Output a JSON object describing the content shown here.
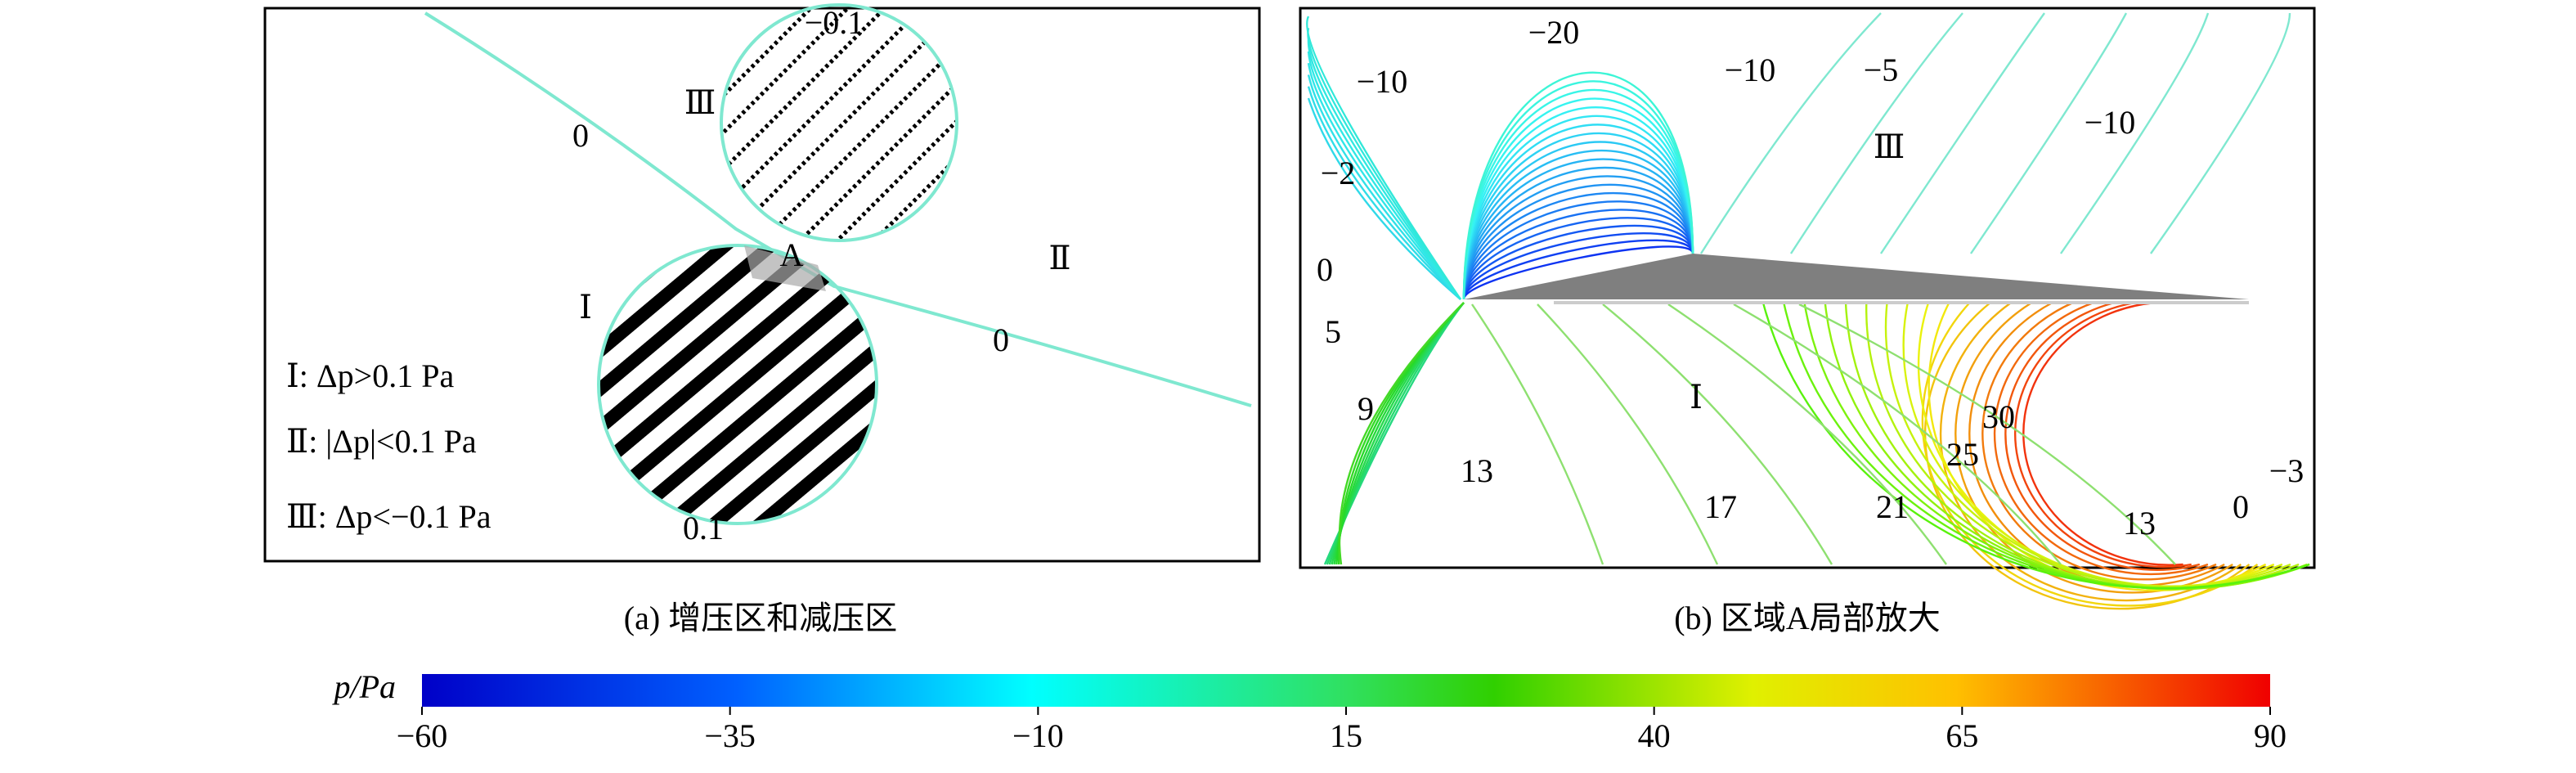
{
  "panel_a": {
    "caption": "(a) 增压区和减压区",
    "labels": [
      "−0.1",
      "Ⅲ",
      "0",
      "A",
      "Ⅱ",
      "Ⅰ",
      "0",
      "0.1"
    ],
    "legend": [
      "Ⅰ: Δp>0.1 Pa",
      "Ⅱ: |Δp|<0.1 Pa",
      "Ⅲ: Δp<−0.1 Pa"
    ]
  },
  "panel_b": {
    "caption": "(b) 区域A局部放大",
    "labels": [
      "−20",
      "−10",
      "−10",
      "−5",
      "−10",
      "Ⅲ",
      "−2",
      "0",
      "5",
      "9",
      "Ⅰ",
      "30",
      "25",
      "13",
      "17",
      "21",
      "13",
      "0",
      "−3"
    ]
  },
  "colorbar": {
    "label": "p/Pa",
    "range": [
      -60,
      90
    ],
    "ticks": [
      {
        "value": -60,
        "label": "−60"
      },
      {
        "value": -35,
        "label": "−35"
      },
      {
        "value": -10,
        "label": "−10"
      },
      15,
      40,
      65,
      90
    ]
  }
}
